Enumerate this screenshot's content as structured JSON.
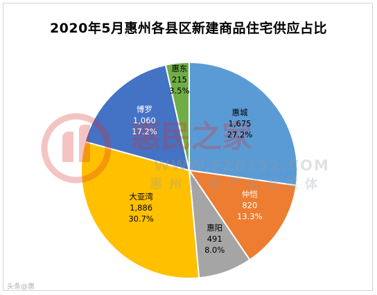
{
  "chart_data": {
    "type": "pie",
    "title": "2020年5月惠州各县区新建商品住宅供应占比",
    "slices": [
      {
        "name": "惠城",
        "value": "1,675",
        "percent": "27.2%",
        "share": 27.2,
        "color": "#5b9bd5",
        "text_color": "#000000"
      },
      {
        "name": "仲恺",
        "value": "820",
        "percent": "13.3%",
        "share": 13.3,
        "color": "#ed7d31",
        "text_color": "#ffffff"
      },
      {
        "name": "惠阳",
        "value": "491",
        "percent": "8.0%",
        "share": 8.0,
        "color": "#a5a5a5",
        "text_color": "#000000"
      },
      {
        "name": "大亚湾",
        "value": "1,886",
        "percent": "30.7%",
        "share": 30.7,
        "color": "#ffc000",
        "text_color": "#000000"
      },
      {
        "name": "博罗",
        "value": "1,060",
        "percent": "17.2%",
        "share": 17.2,
        "color": "#4472c4",
        "text_color": "#ffffff"
      },
      {
        "name": "惠东",
        "value": "215",
        "percent": "3.5%",
        "share": 3.5,
        "color": "#70ad47",
        "text_color": "#000000"
      }
    ],
    "start_angle_deg": 0,
    "direction": "clockwise"
  },
  "watermark": {
    "brand": "惠民之家",
    "url": "WWW.FZ0752.COM",
    "tagline": "惠州房地产权威媒体",
    "corner": "头条@惠"
  }
}
